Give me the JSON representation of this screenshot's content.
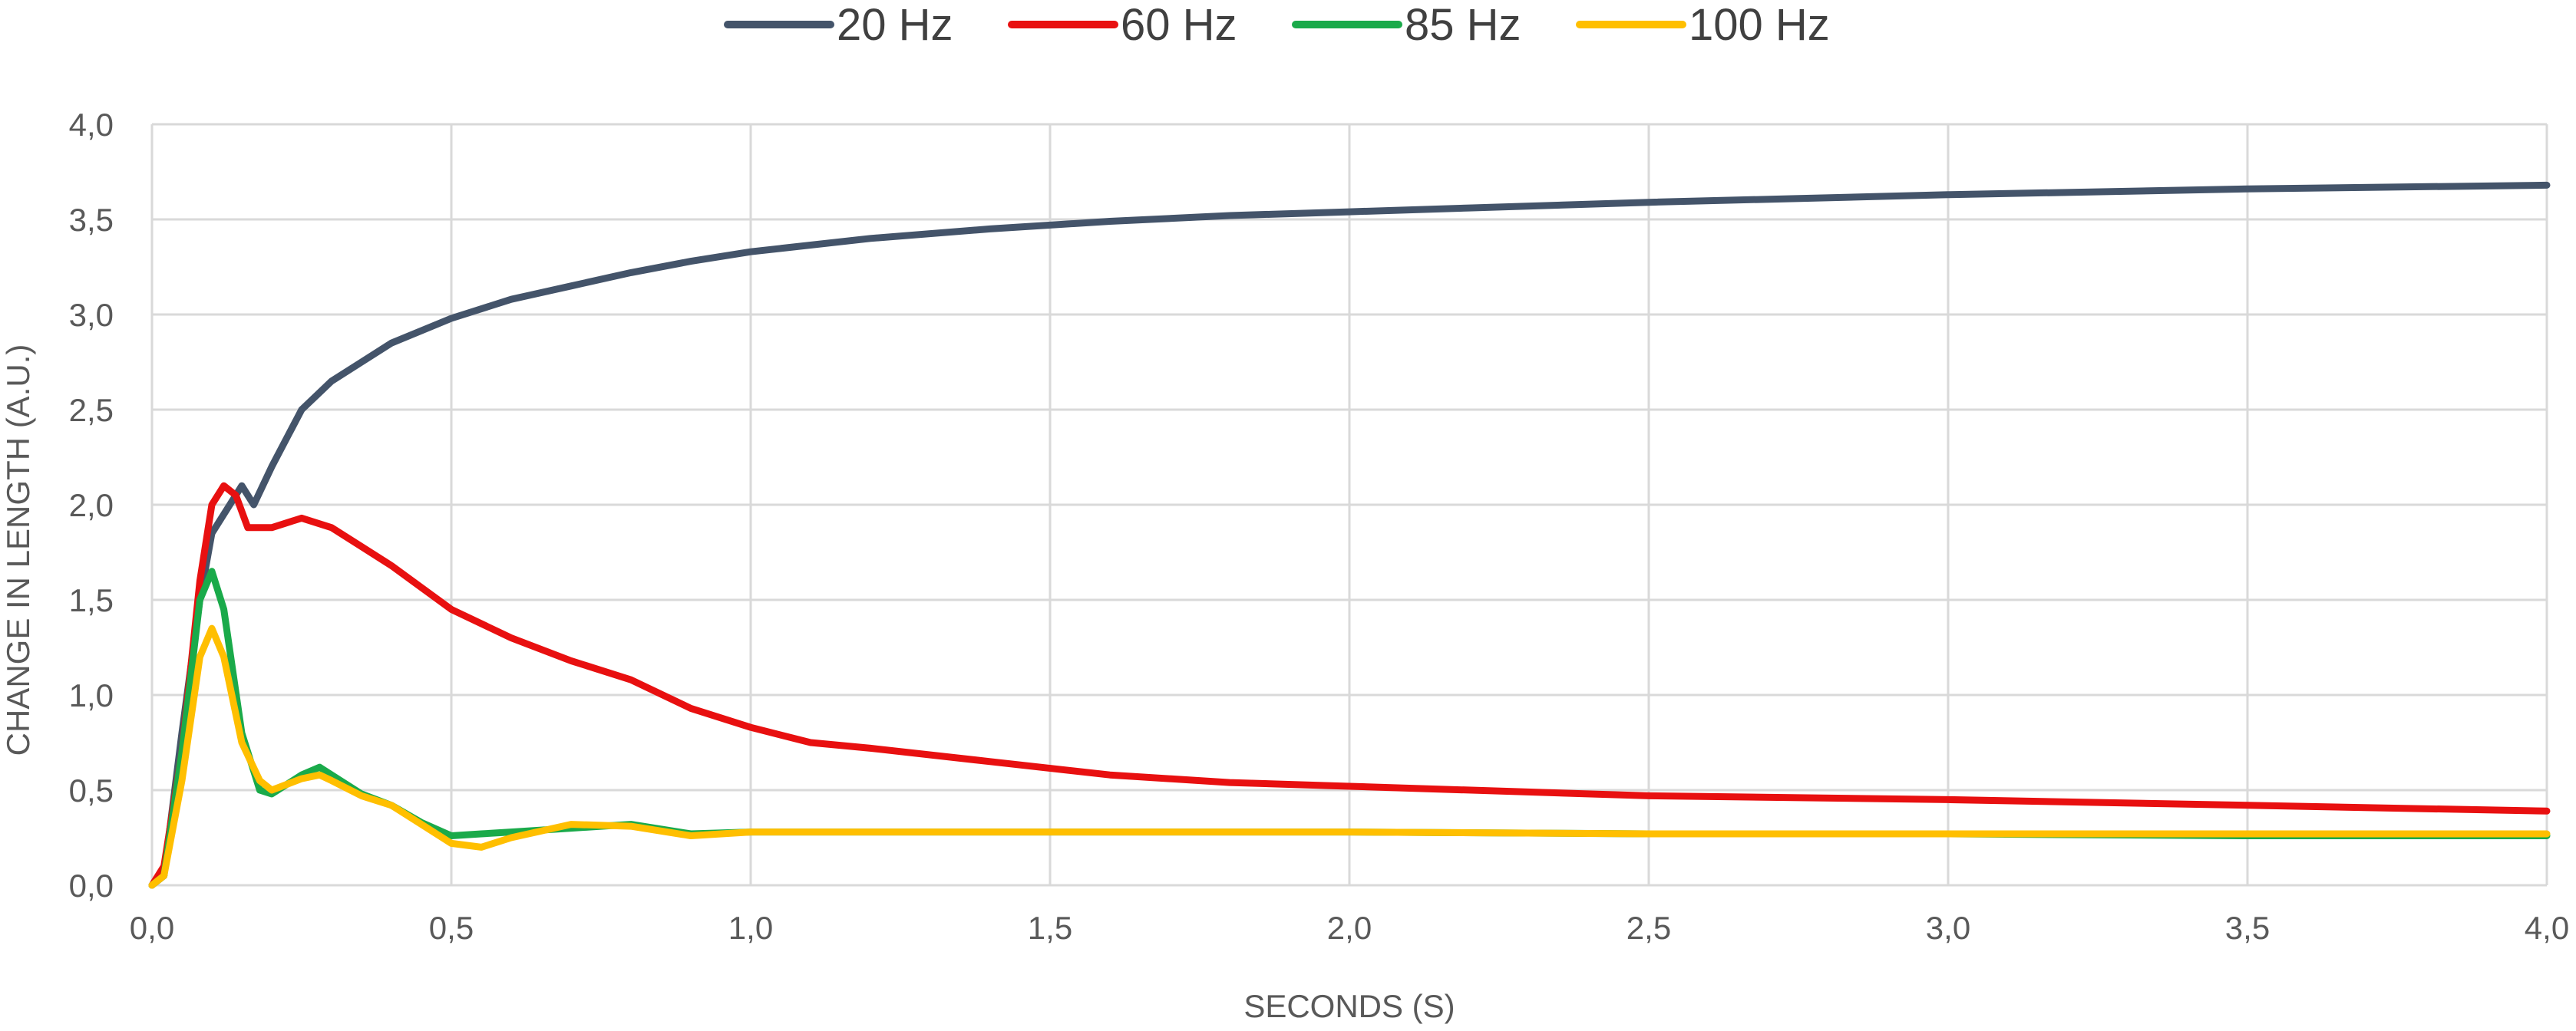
{
  "chart_data": {
    "type": "line",
    "xlabel": "SECONDS (S)",
    "ylabel": "CHANGE IN LENGTH (A.U.)",
    "xlim": [
      0,
      4
    ],
    "ylim": [
      0,
      4
    ],
    "x_ticks": [
      "0,0",
      "0,5",
      "1,0",
      "1,5",
      "2,0",
      "2,5",
      "3,0",
      "3,5",
      "4,0"
    ],
    "y_ticks": [
      "0,0",
      "0,5",
      "1,0",
      "1,5",
      "2,0",
      "2,5",
      "3,0",
      "3,5",
      "4,0"
    ],
    "grid": true,
    "legend_position": "top",
    "series": [
      {
        "name": "20 Hz",
        "color": "#44546a",
        "x": [
          0.0,
          0.02,
          0.05,
          0.08,
          0.1,
          0.13,
          0.15,
          0.17,
          0.2,
          0.25,
          0.3,
          0.35,
          0.4,
          0.5,
          0.6,
          0.7,
          0.8,
          0.9,
          1.0,
          1.2,
          1.4,
          1.6,
          1.8,
          2.0,
          2.2,
          2.5,
          3.0,
          3.5,
          4.0
        ],
        "y": [
          0.0,
          0.05,
          0.8,
          1.5,
          1.85,
          2.0,
          2.1,
          2.0,
          2.2,
          2.5,
          2.65,
          2.75,
          2.85,
          2.98,
          3.08,
          3.15,
          3.22,
          3.28,
          3.33,
          3.4,
          3.45,
          3.49,
          3.52,
          3.54,
          3.56,
          3.59,
          3.63,
          3.66,
          3.68
        ]
      },
      {
        "name": "60 Hz",
        "color": "#e81010",
        "x": [
          0.0,
          0.02,
          0.05,
          0.08,
          0.1,
          0.12,
          0.14,
          0.16,
          0.2,
          0.25,
          0.3,
          0.35,
          0.4,
          0.5,
          0.6,
          0.7,
          0.8,
          0.9,
          1.0,
          1.1,
          1.2,
          1.4,
          1.6,
          1.8,
          2.0,
          2.5,
          3.0,
          3.5,
          4.0
        ],
        "y": [
          0.0,
          0.1,
          0.7,
          1.6,
          2.0,
          2.1,
          2.05,
          1.88,
          1.88,
          1.93,
          1.88,
          1.78,
          1.68,
          1.45,
          1.3,
          1.18,
          1.08,
          0.93,
          0.83,
          0.75,
          0.72,
          0.65,
          0.58,
          0.54,
          0.52,
          0.47,
          0.45,
          0.42,
          0.39
        ]
      },
      {
        "name": "85 Hz",
        "color": "#1aaa4a",
        "x": [
          0.0,
          0.02,
          0.05,
          0.08,
          0.1,
          0.12,
          0.15,
          0.18,
          0.2,
          0.25,
          0.28,
          0.3,
          0.35,
          0.4,
          0.45,
          0.5,
          0.55,
          0.6,
          0.7,
          0.8,
          0.9,
          1.0,
          1.5,
          2.0,
          2.5,
          3.0,
          3.5,
          4.0
        ],
        "y": [
          0.0,
          0.05,
          0.7,
          1.5,
          1.65,
          1.45,
          0.8,
          0.5,
          0.48,
          0.58,
          0.62,
          0.58,
          0.48,
          0.42,
          0.33,
          0.26,
          0.27,
          0.28,
          0.3,
          0.32,
          0.27,
          0.28,
          0.28,
          0.28,
          0.27,
          0.27,
          0.26,
          0.26
        ]
      },
      {
        "name": "100 Hz",
        "color": "#ffbf00",
        "x": [
          0.0,
          0.02,
          0.05,
          0.08,
          0.1,
          0.12,
          0.15,
          0.18,
          0.2,
          0.25,
          0.28,
          0.3,
          0.35,
          0.4,
          0.45,
          0.5,
          0.55,
          0.6,
          0.7,
          0.8,
          0.9,
          1.0,
          1.5,
          2.0,
          2.5,
          3.0,
          3.5,
          4.0
        ],
        "y": [
          0.0,
          0.05,
          0.55,
          1.2,
          1.35,
          1.2,
          0.75,
          0.55,
          0.5,
          0.56,
          0.58,
          0.55,
          0.47,
          0.42,
          0.32,
          0.22,
          0.2,
          0.25,
          0.32,
          0.31,
          0.26,
          0.28,
          0.28,
          0.28,
          0.27,
          0.27,
          0.27,
          0.27
        ]
      }
    ]
  }
}
